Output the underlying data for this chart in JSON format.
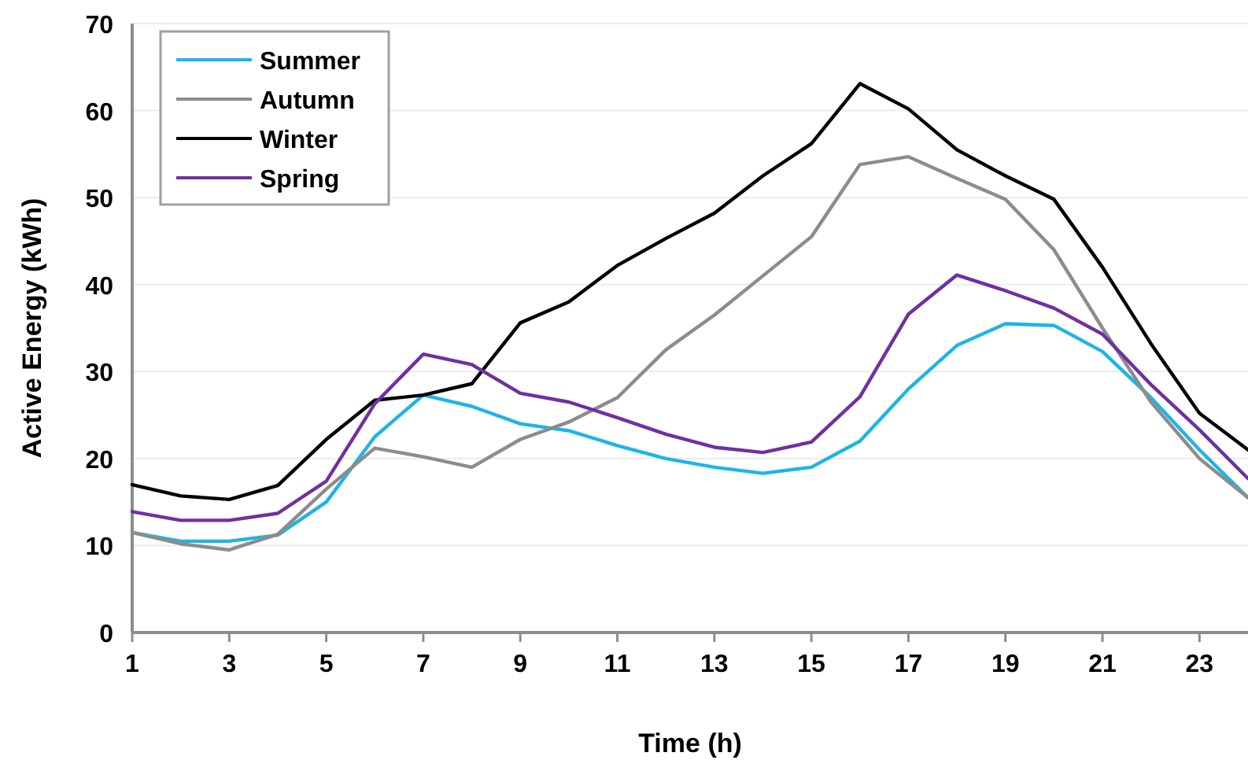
{
  "chart_data": {
    "type": "line",
    "xlabel": "Time (h)",
    "ylabel": "Active Energy (kWh)",
    "x": [
      1,
      2,
      3,
      4,
      5,
      6,
      7,
      8,
      9,
      10,
      11,
      12,
      13,
      14,
      15,
      16,
      17,
      18,
      19,
      20,
      21,
      22,
      23,
      24
    ],
    "xlim": [
      1,
      24
    ],
    "xticks": [
      1,
      3,
      5,
      7,
      9,
      11,
      13,
      15,
      17,
      19,
      21,
      23
    ],
    "ylim": [
      0,
      70
    ],
    "yticks": [
      0,
      10,
      20,
      30,
      40,
      50,
      60,
      70
    ],
    "grid": "y",
    "legend": "top left",
    "marker": "none",
    "line_style": "solid",
    "series": [
      {
        "name": "Summer",
        "color": "#1eb4e8",
        "values": [
          11.5,
          10.5,
          10.5,
          11.2,
          15,
          22.5,
          27.3,
          26,
          24,
          23.2,
          21.5,
          20,
          19,
          18.3,
          19,
          22,
          28,
          33,
          35.5,
          35.3,
          32.3,
          27,
          21,
          15.5
        ]
      },
      {
        "name": "Autumn",
        "color": "#8c8c8c",
        "values": [
          11.5,
          10.2,
          9.5,
          11.3,
          16.5,
          21.2,
          20.2,
          19,
          22.2,
          24.2,
          27,
          32.5,
          36.5,
          41,
          45.5,
          53.8,
          54.7,
          52.2,
          49.8,
          44,
          35,
          26.5,
          20,
          15.5
        ]
      },
      {
        "name": "Winter",
        "color": "#000000",
        "values": [
          17,
          15.7,
          15.3,
          16.9,
          22.2,
          26.7,
          27.3,
          28.6,
          35.6,
          38,
          42.2,
          45.3,
          48.2,
          52.5,
          56.2,
          63.1,
          60.2,
          55.5,
          52.5,
          49.8,
          42,
          33.2,
          25.2,
          21
        ]
      },
      {
        "name": "Spring",
        "color": "#7030a0",
        "values": [
          13.9,
          12.9,
          12.9,
          13.7,
          17.4,
          26.3,
          32,
          30.8,
          27.5,
          26.5,
          24.7,
          22.8,
          21.3,
          20.7,
          21.9,
          27.1,
          36.6,
          41.1,
          39.3,
          37.3,
          34.3,
          28.5,
          23.3,
          17.7
        ]
      }
    ]
  }
}
